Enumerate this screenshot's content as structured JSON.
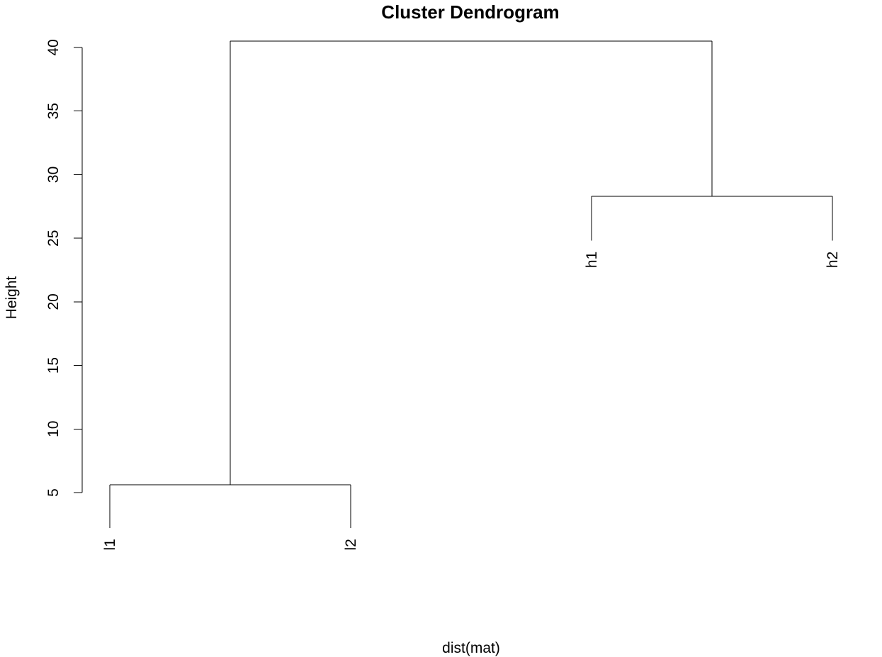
{
  "chart_data": {
    "type": "dendrogram",
    "title": "Cluster Dendrogram",
    "xlabel": "dist(mat)",
    "ylabel": "Height",
    "ylim": [
      2,
      42
    ],
    "yticks": [
      5,
      10,
      15,
      20,
      25,
      30,
      35,
      40
    ],
    "yticks_text": [
      "5",
      "10",
      "15",
      "20",
      "25",
      "30",
      "35",
      "40"
    ],
    "grid": false,
    "legend": "none",
    "leaves": [
      {
        "label": "l1",
        "label_height": 2.2
      },
      {
        "label": "l2",
        "label_height": 2.2
      },
      {
        "label": "h1",
        "label_height": 24.8
      },
      {
        "label": "h2",
        "label_height": 24.8
      }
    ],
    "merges": [
      {
        "left": "l1",
        "right": "l2",
        "height": 5.6
      },
      {
        "left": "h1",
        "right": "h2",
        "height": 28.3
      },
      {
        "left": "l1-l2",
        "right": "h1-h2",
        "height": 40.5
      }
    ],
    "colors": {
      "lines": "#000000",
      "text": "#000000",
      "background": "#ffffff"
    }
  }
}
